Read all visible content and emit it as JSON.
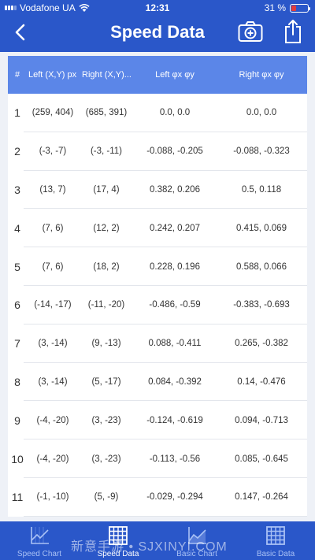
{
  "status": {
    "carrier": "Vodafone UA",
    "time": "12:31",
    "battery": "31 %",
    "battery_level": 0.31
  },
  "nav": {
    "title": "Speed Data"
  },
  "table": {
    "headers": [
      "#",
      "Left (X,Y) px",
      "Right (X,Y)...",
      "Left φx φy",
      "Right φx φy"
    ],
    "rows": [
      [
        "1",
        "(259, 404)",
        "(685, 391)",
        "0.0, 0.0",
        "0.0, 0.0"
      ],
      [
        "2",
        "(-3, -7)",
        "(-3, -11)",
        "-0.088, -0.205",
        "-0.088, -0.323"
      ],
      [
        "3",
        "(13, 7)",
        "(17, 4)",
        "0.382, 0.206",
        "0.5, 0.118"
      ],
      [
        "4",
        "(7, 6)",
        "(12, 2)",
        "0.242, 0.207",
        "0.415, 0.069"
      ],
      [
        "5",
        "(7, 6)",
        "(18, 2)",
        "0.228, 0.196",
        "0.588, 0.066"
      ],
      [
        "6",
        "(-14, -17)",
        "(-11, -20)",
        "-0.486, -0.59",
        "-0.383, -0.693"
      ],
      [
        "7",
        "(3, -14)",
        "(9, -13)",
        "0.088, -0.411",
        "0.265, -0.382"
      ],
      [
        "8",
        "(3, -14)",
        "(5, -17)",
        "0.084, -0.392",
        "0.14, -0.476"
      ],
      [
        "9",
        "(-4, -20)",
        "(3, -23)",
        "-0.124, -0.619",
        "0.094, -0.713"
      ],
      [
        "10",
        "(-4, -20)",
        "(3, -23)",
        "-0.113, -0.56",
        "0.085, -0.645"
      ],
      [
        "11",
        "(-1, -10)",
        "(5, -9)",
        "-0.029, -0.294",
        "0.147, -0.264"
      ]
    ]
  },
  "tabs": [
    {
      "label": "Speed Chart",
      "icon": "line-chart-icon",
      "active": false
    },
    {
      "label": "Speed Data",
      "icon": "grid-table-icon",
      "active": true
    },
    {
      "label": "Basic Chart",
      "icon": "area-chart-icon",
      "active": false
    },
    {
      "label": "Basic Data",
      "icon": "grid-table-icon",
      "active": false
    }
  ],
  "watermark": "新意手游 • SJXINYI.COM",
  "colors": {
    "primary": "#2a57c9",
    "header": "#5b86e8",
    "battery_low": "#e23b3b"
  }
}
